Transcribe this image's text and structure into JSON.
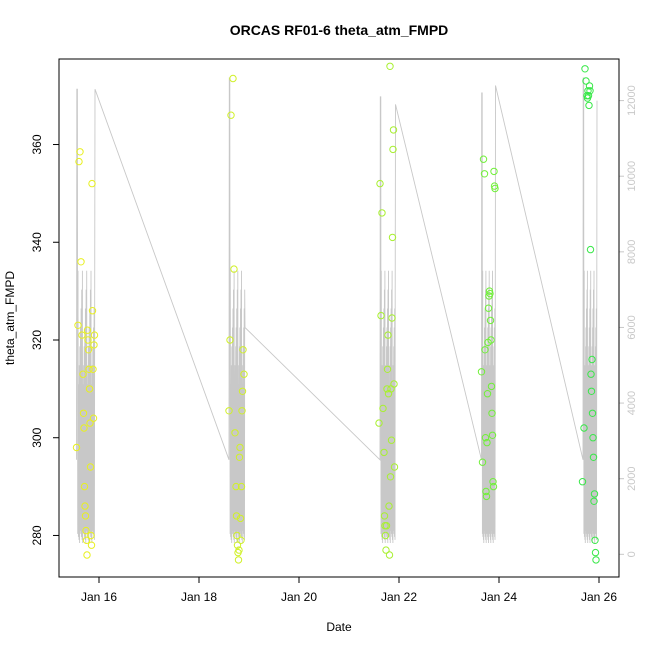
{
  "chart_data": {
    "type": "scatter",
    "title": "ORCAS RF01-6 theta_atm_FMPD",
    "xlabel": "Date",
    "ylabel": "theta_atm_FMPD",
    "x_unit": "days of January",
    "xlim": [
      15.2,
      26.4
    ],
    "ylim": [
      271.5,
      377.5
    ],
    "y2lim": [
      -600,
      13100
    ],
    "x_ticks": [
      {
        "value": 16,
        "label": "Jan 16"
      },
      {
        "value": 18,
        "label": "Jan 18"
      },
      {
        "value": 20,
        "label": "Jan 20"
      },
      {
        "value": 22,
        "label": "Jan 22"
      },
      {
        "value": 24,
        "label": "Jan 24"
      },
      {
        "value": 26,
        "label": "Jan 26"
      }
    ],
    "y_ticks": [
      {
        "value": 280,
        "label": "280"
      },
      {
        "value": 300,
        "label": "300"
      },
      {
        "value": 320,
        "label": "320"
      },
      {
        "value": 340,
        "label": "340"
      },
      {
        "value": 360,
        "label": "360"
      }
    ],
    "y2_ticks": [
      {
        "value": 0,
        "label": "0"
      },
      {
        "value": 2000,
        "label": "2000"
      },
      {
        "value": 4000,
        "label": "4000"
      },
      {
        "value": 6000,
        "label": "6000"
      },
      {
        "value": 8000,
        "label": "8000"
      },
      {
        "value": 10000,
        "label": "10000"
      },
      {
        "value": 12000,
        "label": "12000"
      }
    ],
    "grid": false,
    "legend": "none",
    "line_color": "#c8c8c8",
    "series": [
      {
        "color": "#e8f020",
        "points": [
          [
            15.55,
            298
          ],
          [
            15.58,
            323
          ],
          [
            15.6,
            356.5
          ],
          [
            15.62,
            358.5
          ],
          [
            15.64,
            336
          ],
          [
            15.66,
            321
          ],
          [
            15.68,
            313
          ],
          [
            15.69,
            305
          ],
          [
            15.7,
            302
          ],
          [
            15.71,
            290
          ],
          [
            15.72,
            286
          ],
          [
            15.73,
            284
          ],
          [
            15.74,
            281
          ],
          [
            15.75,
            279
          ],
          [
            15.76,
            276
          ],
          [
            15.77,
            322
          ],
          [
            15.78,
            320
          ],
          [
            15.79,
            318
          ],
          [
            15.8,
            314
          ],
          [
            15.81,
            310
          ],
          [
            15.82,
            303
          ],
          [
            15.83,
            294
          ],
          [
            15.84,
            280
          ],
          [
            15.85,
            278
          ],
          [
            15.86,
            352
          ],
          [
            15.87,
            326
          ],
          [
            15.88,
            314
          ],
          [
            15.89,
            304
          ],
          [
            15.9,
            319
          ],
          [
            15.91,
            321
          ]
        ]
      },
      {
        "color": "#d0f028",
        "points": [
          [
            18.6,
            305.5
          ],
          [
            18.62,
            320
          ],
          [
            18.64,
            366
          ],
          [
            18.68,
            373.5
          ],
          [
            18.7,
            334.5
          ],
          [
            18.72,
            301
          ],
          [
            18.74,
            290
          ],
          [
            18.75,
            284
          ],
          [
            18.76,
            280
          ],
          [
            18.77,
            278
          ],
          [
            18.78,
            276.5
          ],
          [
            18.79,
            275
          ],
          [
            18.8,
            277
          ],
          [
            18.81,
            296
          ],
          [
            18.82,
            298
          ],
          [
            18.83,
            283.5
          ],
          [
            18.84,
            279
          ],
          [
            18.85,
            290
          ],
          [
            18.86,
            305.5
          ],
          [
            18.87,
            309.5
          ],
          [
            18.88,
            318
          ],
          [
            18.9,
            313
          ]
        ]
      },
      {
        "color": "#a8f030",
        "points": [
          [
            21.6,
            303
          ],
          [
            21.62,
            352
          ],
          [
            21.64,
            325
          ],
          [
            21.66,
            346
          ],
          [
            21.68,
            306
          ],
          [
            21.7,
            297
          ],
          [
            21.71,
            284
          ],
          [
            21.72,
            282
          ],
          [
            21.73,
            280
          ],
          [
            21.74,
            277
          ],
          [
            21.75,
            282
          ],
          [
            21.76,
            310
          ],
          [
            21.77,
            314
          ],
          [
            21.78,
            321
          ],
          [
            21.79,
            309
          ],
          [
            21.8,
            286
          ],
          [
            21.81,
            276
          ],
          [
            21.82,
            376
          ],
          [
            21.83,
            292
          ],
          [
            21.84,
            310
          ],
          [
            21.85,
            299.5
          ],
          [
            21.86,
            324.5
          ],
          [
            21.87,
            341
          ],
          [
            21.88,
            359
          ],
          [
            21.89,
            363
          ],
          [
            21.9,
            311
          ],
          [
            21.91,
            294
          ]
        ]
      },
      {
        "color": "#70f038",
        "points": [
          [
            23.65,
            313.5
          ],
          [
            23.67,
            295
          ],
          [
            23.69,
            357
          ],
          [
            23.71,
            354
          ],
          [
            23.72,
            318
          ],
          [
            23.73,
            300
          ],
          [
            23.74,
            289
          ],
          [
            23.75,
            288
          ],
          [
            23.76,
            299
          ],
          [
            23.77,
            309
          ],
          [
            23.78,
            319.5
          ],
          [
            23.79,
            326.5
          ],
          [
            23.8,
            329
          ],
          [
            23.81,
            330
          ],
          [
            23.82,
            329.5
          ],
          [
            23.83,
            324
          ],
          [
            23.84,
            320
          ],
          [
            23.85,
            310.5
          ],
          [
            23.86,
            305
          ],
          [
            23.87,
            300.5
          ],
          [
            23.88,
            291
          ],
          [
            23.89,
            290
          ],
          [
            23.9,
            354.5
          ],
          [
            23.91,
            351.5
          ],
          [
            23.92,
            351
          ]
        ]
      },
      {
        "color": "#38e848",
        "points": [
          [
            25.67,
            291
          ],
          [
            25.7,
            302
          ],
          [
            25.72,
            375.5
          ],
          [
            25.74,
            373
          ],
          [
            25.76,
            370
          ],
          [
            25.77,
            369.5
          ],
          [
            25.78,
            371
          ],
          [
            25.79,
            370
          ],
          [
            25.8,
            368
          ],
          [
            25.81,
            372
          ],
          [
            25.82,
            371
          ],
          [
            25.83,
            338.5
          ],
          [
            25.84,
            313
          ],
          [
            25.85,
            309.5
          ],
          [
            25.86,
            316
          ],
          [
            25.87,
            305
          ],
          [
            25.88,
            300
          ],
          [
            25.89,
            296
          ],
          [
            25.9,
            287
          ],
          [
            25.91,
            288.5
          ],
          [
            25.92,
            279
          ],
          [
            25.93,
            276.5
          ],
          [
            25.94,
            275
          ]
        ]
      }
    ]
  }
}
